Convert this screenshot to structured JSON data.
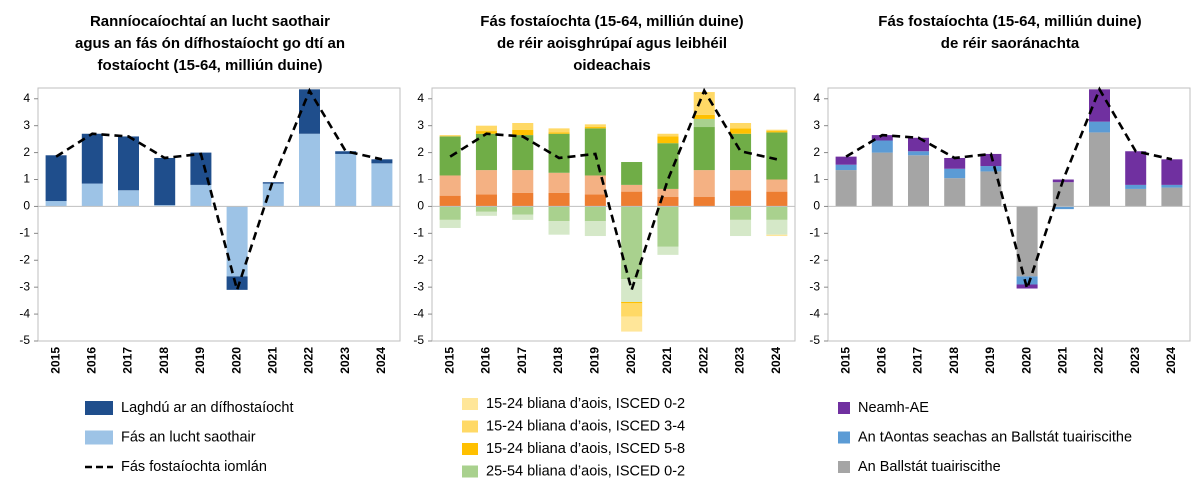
{
  "chart_data": [
    {
      "type": "bar",
      "stacked": true,
      "title": [
        "Ranníocaíochtaí an lucht saothair",
        "agus an fás ón dífhostaíocht go dtí an",
        "fostaíocht (15-64, milliún duine)"
      ],
      "categories": [
        "2015",
        "2016",
        "2017",
        "2018",
        "2019",
        "2020",
        "2021",
        "2022",
        "2023",
        "2024"
      ],
      "series": [
        {
          "name": "Fás an lucht saothair",
          "color": "#9dc3e6",
          "values": [
            0.2,
            0.85,
            0.6,
            0.05,
            0.8,
            -2.6,
            0.85,
            2.7,
            1.95,
            1.6
          ]
        },
        {
          "name": "Laghdú ar an dífhostaíocht",
          "color": "#1f4e8c",
          "values": [
            1.7,
            1.85,
            2.0,
            1.75,
            1.2,
            -0.5,
            0.05,
            1.65,
            0.1,
            0.15
          ]
        }
      ],
      "lines": [
        {
          "name": "Fás fostaíochta iomlán",
          "color": "#000000",
          "style": "dashed",
          "values": [
            1.85,
            2.7,
            2.6,
            1.8,
            1.95,
            -3.1,
            1.0,
            4.3,
            2.05,
            1.75
          ]
        }
      ],
      "ylim": [
        -5,
        4.4
      ],
      "yticks": [
        -5,
        -4,
        -3,
        -2,
        -1,
        0,
        1,
        2,
        3,
        4
      ]
    },
    {
      "type": "bar",
      "stacked": true,
      "title": [
        "Fás fostaíochta (15-64, milliún duine)",
        "de réir aoisghrúpaí agus leibhéil",
        "oideachais"
      ],
      "categories": [
        "2015",
        "2016",
        "2017",
        "2018",
        "2019",
        "2020",
        "2021",
        "2022",
        "2023",
        "2024"
      ],
      "series": [
        {
          "color": "#ed7d31",
          "values": [
            0.4,
            0.45,
            0.5,
            0.5,
            0.45,
            0.55,
            0.35,
            0.35,
            0.6,
            0.55
          ]
        },
        {
          "color": "#f4b183",
          "values": [
            0.75,
            0.9,
            0.85,
            0.75,
            0.7,
            0.25,
            0.3,
            1.0,
            0.75,
            0.45
          ]
        },
        {
          "color": "#70ad47",
          "values": [
            1.45,
            1.35,
            1.3,
            1.45,
            1.75,
            0.85,
            1.7,
            1.6,
            1.35,
            1.75
          ]
        },
        {
          "name": "25-54 bliana d’aois, ISCED 0-2",
          "color": "#a9d18e",
          "values": [
            -0.5,
            -0.2,
            -0.3,
            -0.55,
            -0.55,
            -2.7,
            -1.5,
            0.3,
            -0.5,
            -0.5
          ]
        },
        {
          "color": "#d5e8c8",
          "values": [
            -0.3,
            -0.15,
            -0.2,
            -0.5,
            -0.55,
            -0.85,
            -0.3,
            0,
            -0.6,
            -0.55
          ]
        },
        {
          "name": "15-24 bliana d’aois, ISCED 5-8",
          "color": "#ffc000",
          "values": [
            0,
            0.1,
            0.2,
            0.05,
            0.05,
            -0.05,
            0.25,
            0.15,
            0.2,
            0.05
          ]
        },
        {
          "name": "15-24 bliana d’aois, ISCED 3-4",
          "color": "#ffd966",
          "values": [
            0.05,
            0.2,
            0.25,
            0.15,
            0.1,
            -0.5,
            0.1,
            0.85,
            0.2,
            0.05
          ]
        },
        {
          "name": "15-24 bliana d’aois, ISCED 0-2",
          "color": "#ffe699",
          "values": [
            0,
            0,
            0,
            0,
            0,
            -0.55,
            0,
            0,
            0,
            -0.05
          ]
        }
      ],
      "lines": [
        {
          "color": "#000000",
          "style": "dashed",
          "values": [
            1.85,
            2.7,
            2.6,
            1.8,
            1.95,
            -3.1,
            1.0,
            4.3,
            2.05,
            1.75
          ]
        }
      ],
      "ylim": [
        -5,
        4.4
      ],
      "yticks": [
        -5,
        -4,
        -3,
        -2,
        -1,
        0,
        1,
        2,
        3,
        4
      ]
    },
    {
      "type": "bar",
      "stacked": true,
      "title": [
        "Fás fostaíochta (15-64, milliún duine)",
        "de réir saoránachta"
      ],
      "categories": [
        "2015",
        "2016",
        "2017",
        "2018",
        "2019",
        "2020",
        "2021",
        "2022",
        "2023",
        "2024"
      ],
      "series": [
        {
          "name": "An Ballstát tuairiscithe",
          "color": "#a5a5a5",
          "values": [
            1.35,
            2.0,
            1.9,
            1.05,
            1.3,
            -2.6,
            0.9,
            2.75,
            0.65,
            0.7
          ]
        },
        {
          "name": "An tAontas seachas an Ballstát tuairiscithe",
          "color": "#5b9bd5",
          "values": [
            0.2,
            0.45,
            0.15,
            0.35,
            0.2,
            -0.3,
            -0.1,
            0.4,
            0.15,
            0.1
          ]
        },
        {
          "name": "Neamh-AE",
          "color": "#7030a0",
          "values": [
            0.3,
            0.2,
            0.5,
            0.4,
            0.45,
            -0.15,
            0.1,
            1.2,
            1.25,
            0.95
          ]
        }
      ],
      "lines": [
        {
          "color": "#000000",
          "style": "dashed",
          "values": [
            1.85,
            2.65,
            2.55,
            1.8,
            1.95,
            -3.05,
            1.0,
            4.35,
            2.05,
            1.75
          ]
        }
      ],
      "ylim": [
        -5,
        4.4
      ],
      "yticks": [
        -5,
        -4,
        -3,
        -2,
        -1,
        0,
        1,
        2,
        3,
        4
      ]
    }
  ]
}
